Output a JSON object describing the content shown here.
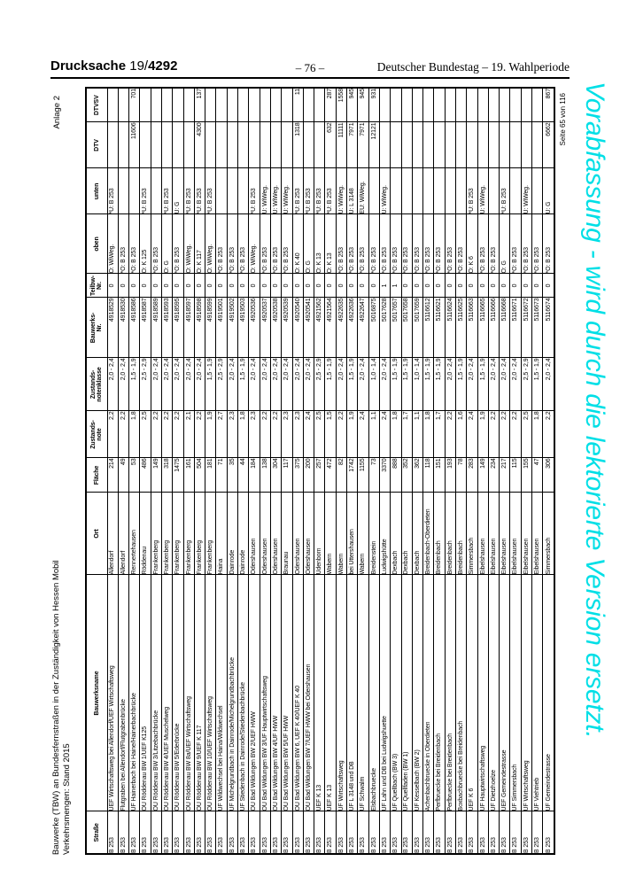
{
  "page_header": {
    "left_label": "Drucksache",
    "left_number_prefix": "19/",
    "left_number_bold": "4292",
    "center_page": "– 76 –",
    "right_label": "Deutscher Bundestag – 19. Wahlperiode"
  },
  "margin_note": {
    "line1": "Bauwerke (TBW) an Bundesfernstraßen in der Zuständigkeit von Hessen Mobil",
    "line2": "Verkehrsmengen: Stand 2015"
  },
  "anlage_label": "Anlage 2",
  "page_footer": "Seite 65 von 116",
  "watermark": {
    "text": "Vorabfassung - wird durch die lektorierte Version ersetzt.",
    "color": "#00dfe6"
  },
  "table": {
    "headers": [
      "Straße",
      "Bauwerksname",
      "Ort",
      "Fläche",
      "Zustands-\nnote",
      "Zustands-\nnotenklasse",
      "Bauwerks-\nNr.",
      "Teilbw-\nNr.",
      "oben",
      "unten",
      "DTV",
      "DTVSV"
    ],
    "align": [
      "l",
      "l",
      "l",
      "r",
      "r",
      "r",
      "r",
      "c",
      "l",
      "l",
      "r",
      "r"
    ],
    "rows": [
      [
        "B 253",
        "UEF Wirtschaftsweg bei Allendorf/UEF Wirtschaftsweg",
        "Allendorf",
        "214",
        "2,2",
        "2,0 - 2,4",
        "4918529",
        "0",
        "O: WiWeg.",
        "*U: B 253",
        "",
        ""
      ],
      [
        "B 253",
        "Flutgraben bei Allendorf/Flutgrabenbrücke",
        "Allendorf",
        "49",
        "2,2",
        "2,0 - 2,4",
        "4918530",
        "0",
        "*O: B 253",
        "",
        "",
        ""
      ],
      [
        "B 253",
        "UF Hainerbach bei Haine/Hainerbachbrücke",
        "Rennertehausen",
        "53",
        "1,8",
        "1,5 - 1,9",
        "4918586",
        "0",
        "*O: B 253",
        "",
        "11606",
        "701"
      ],
      [
        "B 253",
        "OU Röddenau BW 1/UEF K125",
        "Röddenau",
        "486",
        "2,5",
        "2,5 - 2,9",
        "4918587",
        "0",
        "O: K 125",
        "*U: B 253",
        "",
        ""
      ],
      [
        "B 253",
        "OU Röddenau BW 3/Litzebachbrücke",
        "Frankenberg",
        "149",
        "2,2",
        "2,0 - 2,4",
        "4918589",
        "0",
        "*O: B 253",
        "",
        "",
        ""
      ],
      [
        "B 253",
        "OU Röddenau BW 4/UEF Muschelweg",
        "Frankenberg",
        "318",
        "2,2",
        "2,0 - 2,4",
        "4918593",
        "0",
        "O: G",
        "*U: B 253",
        "",
        ""
      ],
      [
        "B 253",
        "OU Röddenau BW 5/Ederbrücke",
        "Frankenberg",
        "1475",
        "2,2",
        "2,0 - 2,4",
        "4918595",
        "0",
        "*O: B 253",
        "U: G",
        "",
        ""
      ],
      [
        "B 253",
        "OU Röddenau BW 8a/UEF Wirtschaftsweg",
        "Frankenberg",
        "161",
        "2,1",
        "2,0 - 2,4",
        "4918597",
        "0",
        "O: WiWeg.",
        "*U: B 253",
        "",
        ""
      ],
      [
        "B 253",
        "OU Röddenau BW 9/UEF K 117",
        "Frankenberg",
        "504",
        "2,2",
        "2,0 - 2,4",
        "4918598",
        "0",
        "O: K 117",
        "*U: B 253",
        "4300",
        "137"
      ],
      [
        "B 253",
        "OU Röddenau BW 10/UEF Wirtschaftsweg",
        "Frankenberg",
        "181",
        "1,9",
        "1,5 - 1,9",
        "4918599",
        "0",
        "O: WiWeg.",
        "*U: B 253",
        "",
        ""
      ],
      [
        "B 253",
        "UF Wildwechsel bei Haina/Wildwechsel",
        "Haina",
        "71",
        "2,7",
        "2,5 - 2,9",
        "4919501",
        "0",
        "*O: B 253",
        "",
        "",
        ""
      ],
      [
        "B 253",
        "UF Michelgrundbach in Dainrode/Michelgrundbachbrücke",
        "Dainrode",
        "35",
        "2,3",
        "2,0 - 2,4",
        "4919502",
        "0",
        "*O: B 253",
        "",
        "",
        ""
      ],
      [
        "B 253",
        "UF Stiedenbach in Dainrode/Stiedenbachbrücke",
        "Dainrode",
        "44",
        "1,8",
        "1,5 - 1,9",
        "4919503",
        "0",
        "*O: B 253",
        "",
        "",
        ""
      ],
      [
        "B 253",
        "OU Bad Wildungen BW 2/UEF HWW",
        "Odershausen",
        "184",
        "2,3",
        "2,0 - 2,4",
        "4920536",
        "0",
        "O: WiWeg.",
        "*U: B 253",
        "",
        ""
      ],
      [
        "B 253",
        "OU Bad Wildungen BW 3/UF Hauptwirtschaftsweg",
        "Odershausen",
        "138",
        "2,2",
        "2,0 - 2,4",
        "4920537",
        "0",
        "*O: B 253",
        "U: WiWeg.",
        "",
        ""
      ],
      [
        "B 253",
        "OU Bad Wildungen BW 4/UF HWW",
        "Odershausen",
        "304",
        "2,2",
        "2,0 - 2,4",
        "4920538",
        "0",
        "*O: B 253",
        "U: WiWeg.",
        "",
        ""
      ],
      [
        "B 253",
        "OU Bad Wildungen BW 5/UF HWW",
        "Braunau",
        "117",
        "2,3",
        "2,0 - 2,4",
        "4920539",
        "0",
        "*O: B 253",
        "U: WiWeg.",
        "",
        ""
      ],
      [
        "B 253",
        "OU Bad Wildungen BW 6, UEF K 40/UEF K 40",
        "Odershausen",
        "375",
        "2,3",
        "2,0 - 2,4",
        "4920540",
        "0",
        "O: K 40",
        "*U: B 253",
        "1318",
        "11"
      ],
      [
        "B 253",
        "OU Bad Wildungen BW 7/UEF HWW bei Odershausen",
        "Odershausen",
        "200",
        "2,4",
        "2,0 - 2,4",
        "4920541",
        "0",
        "O: G",
        "*U: B 253",
        "",
        ""
      ],
      [
        "B 253",
        "UEF K 13",
        "Udenborn",
        "257",
        "2,5",
        "2,5 - 2,9",
        "4921562",
        "0",
        "O: K 13",
        "*U: B 253",
        "",
        ""
      ],
      [
        "B 253",
        "UEF K 13",
        "Wabern",
        "472",
        "1,5",
        "1,5 - 1,9",
        "4921564",
        "0",
        "O: K 13",
        "*U: B 253",
        "632",
        "287"
      ],
      [
        "B 253",
        "UF Wirtschaftsweg",
        "Wabern",
        "82",
        "2,2",
        "2,0 - 2,4",
        "4922635",
        "0",
        "*O: B 253",
        "U: WiWeg.",
        "11111",
        "1558"
      ],
      [
        "B 253",
        "UF L 3148 und DB",
        "bei Uttershausen",
        "1742",
        "1,9",
        "1,5 - 1,9",
        "4922636",
        "0",
        "*O: B 253",
        "U: L 3148",
        "7971",
        "945"
      ],
      [
        "B 253",
        "UF Schwalm",
        "Wabern",
        "1155",
        "2,4",
        "2,0 - 2,4",
        "4922647",
        "0",
        "*O: B 253",
        "EU: WiWeg.",
        "7971",
        "945"
      ],
      [
        "B 253",
        "Elsbachbruecke",
        "Breidenstein",
        "73",
        "1,1",
        "1,0 - 1,4",
        "5016875",
        "0",
        "*O: B 253",
        "",
        "12121",
        "931"
      ],
      [
        "B 253",
        "UF Lahn und DB bei Ludwigshuette",
        "Ludwigshütte",
        "3370",
        "2,4",
        "2,0 - 2,4",
        "5017628",
        "1",
        "*O: B 253",
        "U: WiWeg.",
        "",
        ""
      ],
      [
        "B 253",
        "UF Quellbach (BW 3)",
        "Dexbach",
        "888",
        "1,8",
        "1,5 - 1,9",
        "5017657",
        "1",
        "*O: B 253",
        "",
        "",
        ""
      ],
      [
        "B 253",
        "UF Quellfaden (BW 1)",
        "Dexbach",
        "352",
        "1,7",
        "1,5 - 1,9",
        "5017658",
        "0",
        "*O: B 253",
        "",
        "",
        ""
      ],
      [
        "B 253",
        "UF Kesselbach (BW 2)",
        "Dexbach",
        "362",
        "1,1",
        "1,0 - 1,4",
        "5017659",
        "0",
        "*O: B 253",
        "",
        "",
        ""
      ],
      [
        "B 253",
        "Achenbachbruecke in Oberdieten",
        "Breidenbach-Oberdieten",
        "118",
        "1,8",
        "1,5 - 1,9",
        "5116612",
        "0",
        "*O: B 253",
        "",
        "",
        ""
      ],
      [
        "B 253",
        "Perfbruecke bei Breidenbach",
        "Breidenbach",
        "151",
        "1,7",
        "1,5 - 1,9",
        "5116621",
        "0",
        "*O: B 253",
        "",
        "",
        ""
      ],
      [
        "B 253",
        "Perfbruecke bei Breidenbach",
        "Breidenbach",
        "193",
        "2,2",
        "2,0 - 2,4",
        "5116624",
        "0",
        "*O: B 253",
        "",
        "",
        ""
      ],
      [
        "B 253",
        "Boxbachbruecke bei Breidenbach",
        "Breidenbach",
        "78",
        "1,6",
        "1,5 - 1,9",
        "5116625",
        "0",
        "*O: B 253",
        "",
        "",
        ""
      ],
      [
        "B 253",
        "UEF K 6",
        "Simmersbach",
        "283",
        "2,4",
        "2,0 - 2,4",
        "5116663",
        "0",
        "O: K 6",
        "*U: B 253",
        "",
        ""
      ],
      [
        "B 253",
        "UF Hauptwirtschaftsweg",
        "Eibelshausen",
        "149",
        "1,9",
        "1,5 - 1,9",
        "5116665",
        "0",
        "*O: B 253",
        "U: WiWeg.",
        "",
        ""
      ],
      [
        "B 253",
        "UF Dietzhoelze",
        "Eibelshausen",
        "234",
        "2,2",
        "2,0 - 2,4",
        "5116666",
        "0",
        "*O: B 253",
        "",
        "",
        ""
      ],
      [
        "B 253",
        "UEF Gemeindestrasse",
        "Eibelshausen",
        "217",
        "2,2",
        "2,0 - 2,4",
        "5116668",
        "0",
        "O: G",
        "*U: B 253",
        "",
        ""
      ],
      [
        "B 253",
        "UF Simmersbach",
        "Eibelshausen",
        "115",
        "2,2",
        "2,0 - 2,4",
        "5116671",
        "0",
        "*O: B 253",
        "",
        "",
        ""
      ],
      [
        "B 253",
        "UF Wirtschaftsweg",
        "Eibelshausen",
        "155",
        "2,5",
        "2,5 - 2,9",
        "5116672",
        "0",
        "*O: B 253",
        "U: WiWeg.",
        "",
        ""
      ],
      [
        "B 253",
        "UF Viehtrieb",
        "Eibelshausen",
        "47",
        "1,8",
        "1,5 - 1,9",
        "5116673",
        "0",
        "*O: B 253",
        "",
        "",
        ""
      ],
      [
        "B 253",
        "UF Gemeindestrasse",
        "Simmersbach",
        "306",
        "2,2",
        "2,0 - 2,4",
        "5116674",
        "0",
        "*O: B 253",
        "U: G",
        "6662",
        "867"
      ]
    ]
  }
}
